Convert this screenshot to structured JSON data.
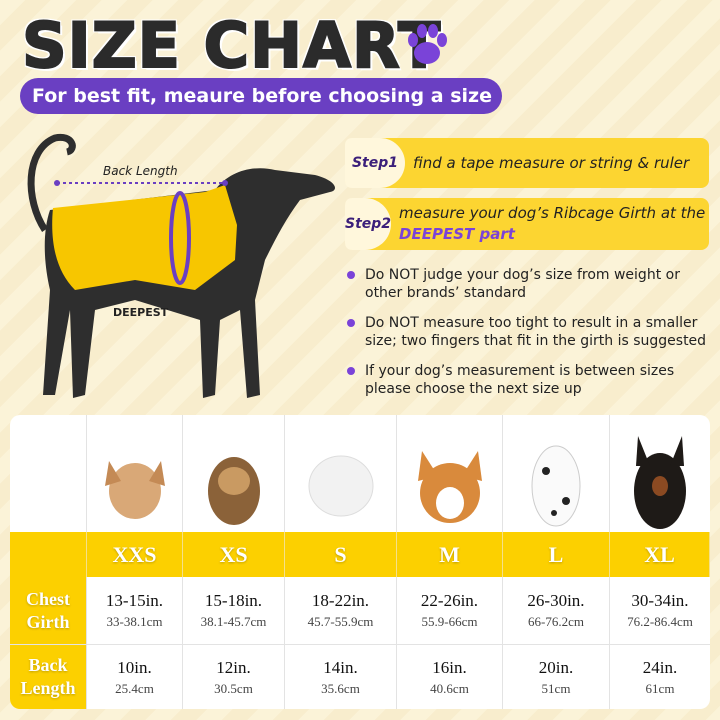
{
  "title": "SIZE CHART",
  "subtitle": "For best fit, meaure before choosing a size",
  "diagram": {
    "back_length_label": "Back Length",
    "deepest_label": "DEEPEST"
  },
  "steps": [
    {
      "label": "Step1",
      "text": "find a tape measure or string & ruler"
    },
    {
      "label": "Step2",
      "text": "measure your dog’s Ribcage Girth at the",
      "highlight": "DEEPEST part"
    }
  ],
  "notes": [
    "Do NOT judge your dog’s size from weight or other brands’ standard",
    "Do NOT measure too tight to result in a smaller size; two fingers that fit in the girth is suggested",
    "If your dog’s measurement is between sizes please choose the next size up"
  ],
  "colors": {
    "accent_purple": "#6a3fc2",
    "yellow": "#fcd000",
    "text_dark": "#2b2b2b"
  },
  "table": {
    "sizes": [
      "XXS",
      "XS",
      "S",
      "M",
      "L",
      "XL"
    ],
    "dog_photos": [
      "chihuahua",
      "yorkshire-terrier",
      "maltese",
      "corgi",
      "dalmatian",
      "doberman"
    ],
    "rows": [
      {
        "label": "Chest Girth",
        "inches": [
          "13-15in.",
          "15-18in.",
          "18-22in.",
          "22-26in.",
          "26-30in.",
          "30-34in."
        ],
        "cm": [
          "33-38.1cm",
          "38.1-45.7cm",
          "45.7-55.9cm",
          "55.9-66cm",
          "66-76.2cm",
          "76.2-86.4cm"
        ]
      },
      {
        "label": "Back Length",
        "inches": [
          "10in.",
          "12in.",
          "14in.",
          "16in.",
          "20in.",
          "24in."
        ],
        "cm": [
          "25.4cm",
          "30.5cm",
          "35.6cm",
          "40.6cm",
          "51cm",
          "61cm"
        ]
      }
    ]
  }
}
